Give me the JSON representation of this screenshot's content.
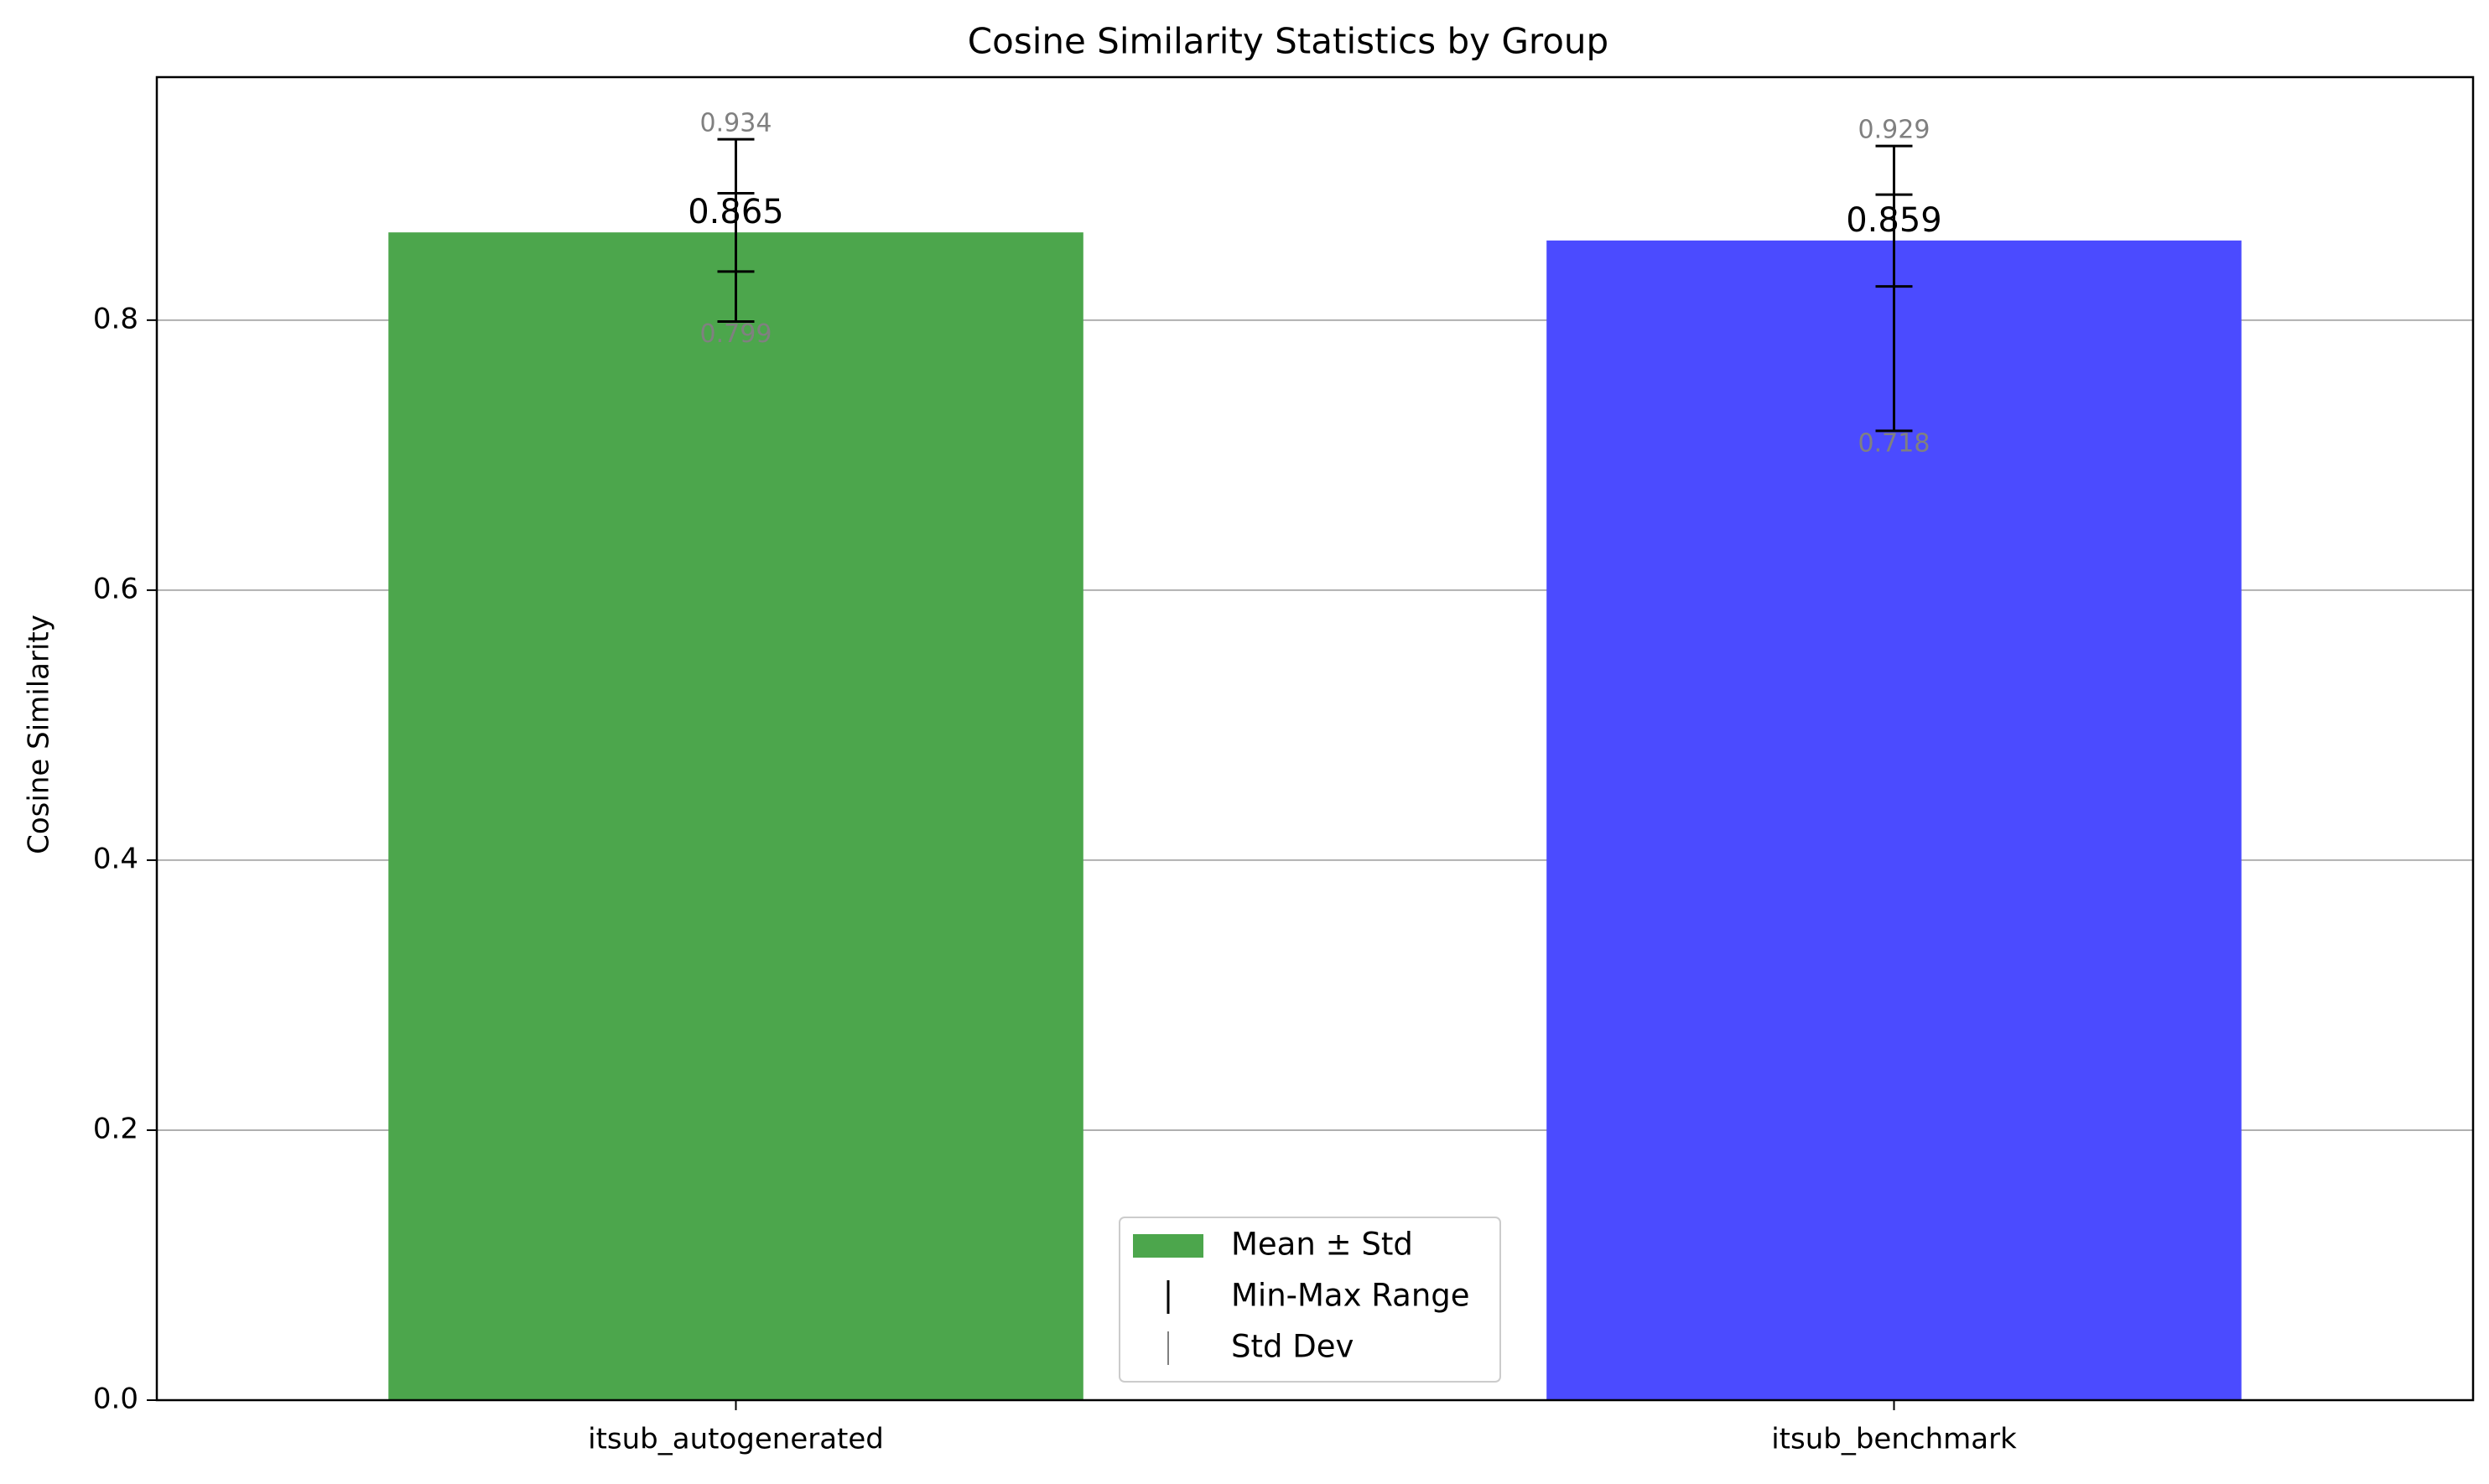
{
  "chart_data": {
    "type": "bar",
    "title": "Cosine Similarity Statistics by Group",
    "xlabel": "",
    "ylabel": "Cosine Similarity",
    "ylim": [
      0,
      0.98
    ],
    "yticks": [
      0.0,
      0.2,
      0.4,
      0.6,
      0.8
    ],
    "ytick_labels": [
      "0.0",
      "0.2",
      "0.4",
      "0.6",
      "0.8"
    ],
    "grid": "y",
    "legend_position": "lower-center",
    "categories": [
      "itsub_autogenerated",
      "itsub_benchmark"
    ],
    "mean": [
      0.865,
      0.859
    ],
    "mean_labels": [
      "0.865",
      "0.859"
    ],
    "min": [
      0.799,
      0.718
    ],
    "min_labels": [
      "0.799",
      "0.718"
    ],
    "max": [
      0.934,
      0.929
    ],
    "max_labels": [
      "0.934",
      "0.929"
    ],
    "std": [
      0.029,
      0.034
    ],
    "colors": [
      "#4ca64c",
      "#4b4bff"
    ],
    "legend": [
      {
        "label": "Mean ± Std",
        "kind": "patch",
        "color": "#4ca64c"
      },
      {
        "label": "Min-Max Range",
        "kind": "line",
        "color": "#000000"
      },
      {
        "label": "Std Dev",
        "kind": "line",
        "color": "#808080"
      }
    ]
  }
}
